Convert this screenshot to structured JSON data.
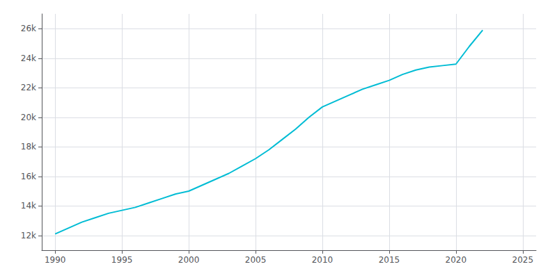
{
  "chart_data": {
    "type": "line",
    "x": [
      1990,
      1991,
      1992,
      1993,
      1994,
      1995,
      1996,
      1997,
      1998,
      1999,
      2000,
      2001,
      2002,
      2003,
      2004,
      2005,
      2006,
      2007,
      2008,
      2009,
      2010,
      2011,
      2012,
      2013,
      2014,
      2015,
      2016,
      2017,
      2018,
      2019,
      2020,
      2021,
      2022
    ],
    "values": [
      12100,
      12500,
      12900,
      13200,
      13500,
      13700,
      13900,
      14200,
      14500,
      14800,
      15000,
      15400,
      15800,
      16200,
      16700,
      17200,
      17800,
      18500,
      19200,
      20000,
      20700,
      21100,
      21500,
      21900,
      22200,
      22500,
      22900,
      23200,
      23400,
      23500,
      23600,
      24800,
      25900
    ],
    "color": "#00bcd4",
    "xlim": [
      1989,
      2026
    ],
    "xticks": [
      1990,
      1995,
      2000,
      2005,
      2010,
      2015,
      2020,
      2025
    ],
    "ylim": [
      11000,
      27000
    ],
    "yticks": [
      {
        "value": 12000,
        "label": "12k"
      },
      {
        "value": 14000,
        "label": "14k"
      },
      {
        "value": 16000,
        "label": "16k"
      },
      {
        "value": 18000,
        "label": "18k"
      },
      {
        "value": 20000,
        "label": "20k"
      },
      {
        "value": 22000,
        "label": "22k"
      },
      {
        "value": 24000,
        "label": "24k"
      },
      {
        "value": 26000,
        "label": "26k"
      }
    ],
    "grid": true
  }
}
